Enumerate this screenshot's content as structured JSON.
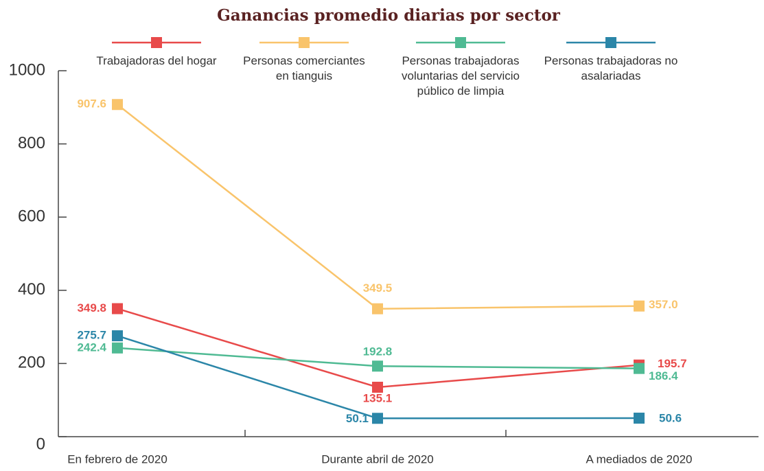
{
  "chart_data": {
    "type": "line",
    "title": "Ganancias promedio diarias por sector",
    "categories": [
      "En febrero de 2020",
      "Durante abril de 2020",
      "A mediados de 2020"
    ],
    "ylim": [
      0,
      1000
    ],
    "yticks": [
      0,
      200,
      400,
      600,
      800,
      1000
    ],
    "series": [
      {
        "name": "Trabajadoras del hogar",
        "color": "#e84a4a",
        "values": [
          349.8,
          135.1,
          195.7
        ],
        "value_labels": [
          "349.8",
          "135.1",
          "195.7"
        ]
      },
      {
        "name": "Personas comerciantes en tianguis",
        "color": "#f9c46b",
        "values": [
          907.6,
          349.5,
          357.0
        ],
        "value_labels": [
          "907.6",
          "349.5",
          "357.0"
        ]
      },
      {
        "name": "Personas trabajadoras voluntarias del servicio público de limpia",
        "color": "#4fba93",
        "values": [
          242.4,
          192.8,
          186.4
        ],
        "value_labels": [
          "242.4",
          "192.8",
          "186.4"
        ]
      },
      {
        "name": "Personas trabajadoras no asalariadas",
        "color": "#2b86a8",
        "values": [
          275.7,
          50.1,
          50.6
        ],
        "value_labels": [
          "275.7",
          "50.1",
          "50.6"
        ]
      }
    ]
  }
}
